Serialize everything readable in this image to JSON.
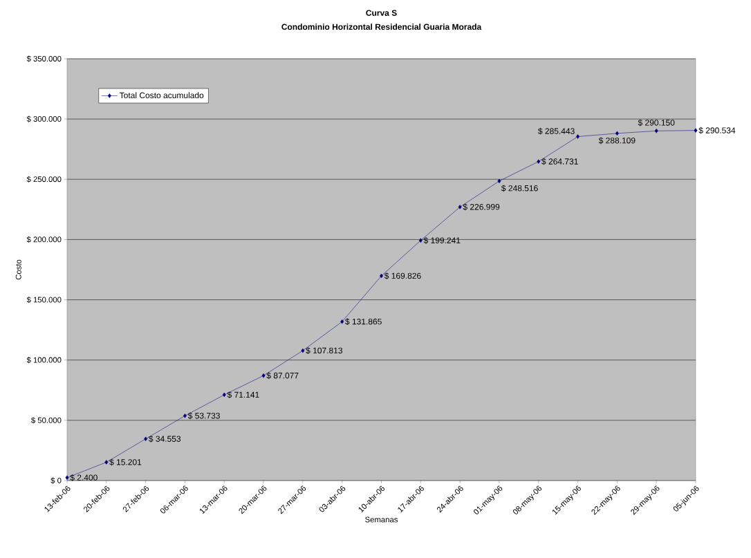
{
  "chart_data": {
    "type": "line",
    "title": "Curva S",
    "subtitle": "Condominio Horizontal Residencial Guaria Morada",
    "xlabel": "Semanas",
    "ylabel": "Costo",
    "categories": [
      "13-feb-06",
      "20-feb-06",
      "27-feb-06",
      "06-mar-06",
      "13-mar-06",
      "20-mar-06",
      "27-mar-06",
      "03-abr-06",
      "10-abr-06",
      "17-abr-06",
      "24-abr-06",
      "01-may-06",
      "08-may-06",
      "15-may-06",
      "22-may-06",
      "29-may-06",
      "05-jun-06"
    ],
    "series": [
      {
        "name": "Total Costo acumulado",
        "color": "#000080",
        "values": [
          2400,
          15201,
          34553,
          53733,
          71141,
          87077,
          107813,
          131865,
          169826,
          199241,
          226999,
          248516,
          264731,
          285443,
          288109,
          290150,
          290534
        ],
        "value_labels": [
          "$ 2.400",
          "$ 15.201",
          "$ 34.553",
          "$ 53.733",
          "$ 71.141",
          "$ 87.077",
          "$ 107.813",
          "$ 131.865",
          "$ 169.826",
          "$ 199.241",
          "$ 226.999",
          "$ 248.516",
          "$ 264.731",
          "$ 285.443",
          "$ 288.109",
          "$ 290.150",
          "$ 290.534"
        ]
      }
    ],
    "ylim": [
      0,
      350000
    ],
    "yticks": [
      {
        "value": 0,
        "label": "$ 0"
      },
      {
        "value": 50000,
        "label": "$ 50.000"
      },
      {
        "value": 100000,
        "label": "$ 100.000"
      },
      {
        "value": 150000,
        "label": "$ 150.000"
      },
      {
        "value": 200000,
        "label": "$ 200.000"
      },
      {
        "value": 250000,
        "label": "$ 250.000"
      },
      {
        "value": 300000,
        "label": "$ 300.000"
      },
      {
        "value": 350000,
        "label": "$ 350.000"
      }
    ],
    "grid": "y",
    "legend": "top left",
    "marker": "diamond",
    "line_style": "solid"
  }
}
